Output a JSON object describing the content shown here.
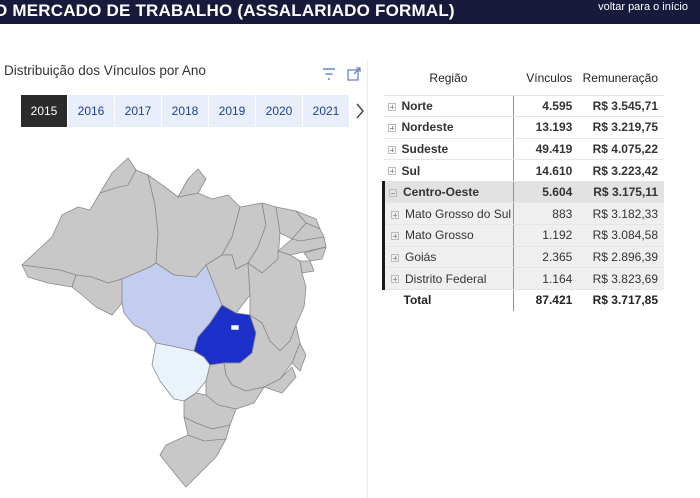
{
  "header": {
    "title": "O MERCADO DE TRABALHO (ASSALARIADO FORMAL)",
    "back_link": "voltar para o início"
  },
  "map_visual": {
    "title": "Distribuição dos Vínculos por Ano",
    "years": [
      "2015",
      "2016",
      "2017",
      "2018",
      "2019",
      "2020",
      "2021"
    ],
    "selected_year": "2015",
    "next_glyph": "›",
    "highlight_colors": {
      "goias": "#1c2fc9",
      "mato_grosso": "#c2cdef",
      "mato_grosso_do_sul": "#eaf2fc",
      "other": "#c8c8c8"
    }
  },
  "table": {
    "columns": [
      "Região",
      "Vínculos",
      "Remuneração"
    ],
    "rows": [
      {
        "name": "Norte",
        "vinculos": "4.595",
        "remuneracao": "R$ 3.545,71",
        "level": "region"
      },
      {
        "name": "Nordeste",
        "vinculos": "13.193",
        "remuneracao": "R$ 3.219,75",
        "level": "region"
      },
      {
        "name": "Sudeste",
        "vinculos": "49.419",
        "remuneracao": "R$ 4.075,22",
        "level": "region"
      },
      {
        "name": "Sul",
        "vinculos": "14.610",
        "remuneracao": "R$ 3.223,42",
        "level": "region"
      },
      {
        "name": "Centro-Oeste",
        "vinculos": "5.604",
        "remuneracao": "R$ 3.175,11",
        "level": "region-expanded"
      },
      {
        "name": "Mato Grosso do Sul",
        "vinculos": "883",
        "remuneracao": "R$ 3.182,33",
        "level": "state"
      },
      {
        "name": "Mato Grosso",
        "vinculos": "1.192",
        "remuneracao": "R$ 3.084,58",
        "level": "state"
      },
      {
        "name": "Goiás",
        "vinculos": "2.365",
        "remuneracao": "R$ 2.896,39",
        "level": "state"
      },
      {
        "name": "Distrito Federal",
        "vinculos": "1.164",
        "remuneracao": "R$ 3.823,69",
        "level": "state"
      }
    ],
    "total": {
      "name": "Total",
      "vinculos": "87.421",
      "remuneracao": "R$ 3.717,85"
    }
  }
}
